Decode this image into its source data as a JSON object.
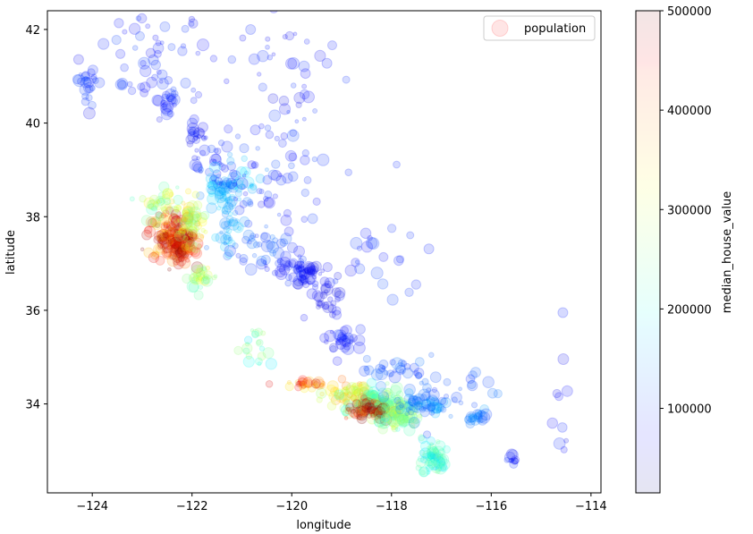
{
  "chart_data": {
    "type": "scatter",
    "title": "",
    "xlabel": "longitude",
    "ylabel": "latitude",
    "xlim": [
      -124.9,
      -113.8
    ],
    "ylim": [
      32.1,
      42.4
    ],
    "x_ticks": [
      -124,
      -122,
      -120,
      -118,
      -116,
      -114
    ],
    "x_tick_labels": [
      "−124",
      "−122",
      "−120",
      "−118",
      "−116",
      "−114"
    ],
    "y_ticks": [
      34,
      36,
      38,
      40,
      42
    ],
    "y_tick_labels": [
      "34",
      "36",
      "38",
      "40",
      "42"
    ],
    "legend": {
      "label": "population",
      "placement": "top-right"
    },
    "colorbar": {
      "label": "median_house_value",
      "colormap": "jet",
      "range": [
        14999,
        500001
      ],
      "ticks": [
        100000,
        200000,
        300000,
        400000,
        500000
      ],
      "tick_labels": [
        "100000",
        "200000",
        "300000",
        "400000",
        "500000"
      ]
    },
    "alpha": 0.1,
    "clusters": [
      {
        "lon": -124.1,
        "lat": 40.85,
        "spread": [
          0.12,
          0.15
        ],
        "count": 22,
        "value": 95000,
        "size": 3
      },
      {
        "lon": -122.5,
        "lat": 40.5,
        "spread": [
          0.1,
          0.15
        ],
        "count": 20,
        "value": 90000,
        "size": 3
      },
      {
        "lon": -121.9,
        "lat": 39.7,
        "spread": [
          0.15,
          0.12
        ],
        "count": 18,
        "value": 80000,
        "size": 3
      },
      {
        "lon": -121.6,
        "lat": 39.2,
        "spread": [
          0.2,
          0.2
        ],
        "count": 25,
        "value": 85000,
        "size": 3
      },
      {
        "lon": -121.4,
        "lat": 38.6,
        "spread": [
          0.2,
          0.18
        ],
        "count": 45,
        "value": 150000,
        "size": 3
      },
      {
        "lon": -121.0,
        "lat": 38.7,
        "spread": [
          0.3,
          0.3
        ],
        "count": 25,
        "value": 170000,
        "size": 3
      },
      {
        "lon": -121.2,
        "lat": 37.8,
        "spread": [
          0.15,
          0.3
        ],
        "count": 35,
        "value": 150000,
        "size": 3
      },
      {
        "lon": -120.7,
        "lat": 37.4,
        "spread": [
          0.3,
          0.2
        ],
        "count": 35,
        "value": 110000,
        "size": 3
      },
      {
        "lon": -120.1,
        "lat": 37.0,
        "spread": [
          0.25,
          0.2
        ],
        "count": 30,
        "value": 80000,
        "size": 3
      },
      {
        "lon": -119.75,
        "lat": 36.75,
        "spread": [
          0.15,
          0.12
        ],
        "count": 40,
        "value": 75000,
        "size": 3
      },
      {
        "lon": -119.3,
        "lat": 36.35,
        "spread": [
          0.2,
          0.2
        ],
        "count": 30,
        "value": 70000,
        "size": 3
      },
      {
        "lon": -119.0,
        "lat": 35.4,
        "spread": [
          0.15,
          0.12
        ],
        "count": 30,
        "value": 80000,
        "size": 3
      },
      {
        "lon": -122.45,
        "lat": 37.6,
        "spread": [
          0.22,
          0.25
        ],
        "count": 130,
        "value": 420000,
        "size": 3
      },
      {
        "lon": -122.2,
        "lat": 37.35,
        "spread": [
          0.15,
          0.2
        ],
        "count": 80,
        "value": 450000,
        "size": 3
      },
      {
        "lon": -122.05,
        "lat": 37.9,
        "spread": [
          0.15,
          0.25
        ],
        "count": 60,
        "value": 300000,
        "size": 3
      },
      {
        "lon": -122.6,
        "lat": 38.3,
        "spread": [
          0.2,
          0.2
        ],
        "count": 40,
        "value": 280000,
        "size": 3
      },
      {
        "lon": -121.8,
        "lat": 36.7,
        "spread": [
          0.15,
          0.12
        ],
        "count": 30,
        "value": 280000,
        "size": 3
      },
      {
        "lon": -120.65,
        "lat": 35.2,
        "spread": [
          0.15,
          0.25
        ],
        "count": 20,
        "value": 230000,
        "size": 3
      },
      {
        "lon": -119.7,
        "lat": 34.42,
        "spread": [
          0.2,
          0.04
        ],
        "count": 30,
        "value": 400000,
        "size": 3
      },
      {
        "lon": -118.85,
        "lat": 34.2,
        "spread": [
          0.25,
          0.12
        ],
        "count": 50,
        "value": 330000,
        "size": 3
      },
      {
        "lon": -118.3,
        "lat": 34.0,
        "spread": [
          0.25,
          0.15
        ],
        "count": 160,
        "value": 250000,
        "size": 3
      },
      {
        "lon": -118.45,
        "lat": 33.85,
        "spread": [
          0.18,
          0.1
        ],
        "count": 60,
        "value": 480000,
        "size": 3
      },
      {
        "lon": -117.85,
        "lat": 33.75,
        "spread": [
          0.2,
          0.12
        ],
        "count": 80,
        "value": 260000,
        "size": 3
      },
      {
        "lon": -117.35,
        "lat": 34.0,
        "spread": [
          0.3,
          0.12
        ],
        "count": 60,
        "value": 140000,
        "size": 3
      },
      {
        "lon": -117.15,
        "lat": 32.85,
        "spread": [
          0.12,
          0.2
        ],
        "count": 70,
        "value": 210000,
        "size": 3
      },
      {
        "lon": -116.3,
        "lat": 33.75,
        "spread": [
          0.12,
          0.08
        ],
        "count": 20,
        "value": 130000,
        "size": 3
      },
      {
        "lon": -115.55,
        "lat": 32.8,
        "spread": [
          0.08,
          0.05
        ],
        "count": 10,
        "value": 80000,
        "size": 3
      },
      {
        "lon": -118.0,
        "lat": 34.7,
        "spread": [
          0.35,
          0.12
        ],
        "count": 30,
        "value": 110000,
        "size": 3
      },
      {
        "lon": -120.5,
        "lat": 39.0,
        "spread": [
          0.6,
          0.7
        ],
        "count": 70,
        "value": 90000,
        "size": 3
      },
      {
        "lon": -122.8,
        "lat": 41.2,
        "spread": [
          0.6,
          0.5
        ],
        "count": 60,
        "value": 85000,
        "size": 3
      },
      {
        "lon": -120.0,
        "lat": 41.3,
        "spread": [
          0.6,
          0.5
        ],
        "count": 35,
        "value": 80000,
        "size": 3
      },
      {
        "lon": -118.5,
        "lat": 36.8,
        "spread": [
          0.5,
          0.7
        ],
        "count": 30,
        "value": 90000,
        "size": 3
      },
      {
        "lon": -116.8,
        "lat": 34.2,
        "spread": [
          0.6,
          0.4
        ],
        "count": 35,
        "value": 110000,
        "size": 3
      },
      {
        "lon": -114.6,
        "lat": 33.8,
        "spread": [
          0.1,
          0.6
        ],
        "count": 10,
        "value": 80000,
        "size": 3
      }
    ]
  }
}
